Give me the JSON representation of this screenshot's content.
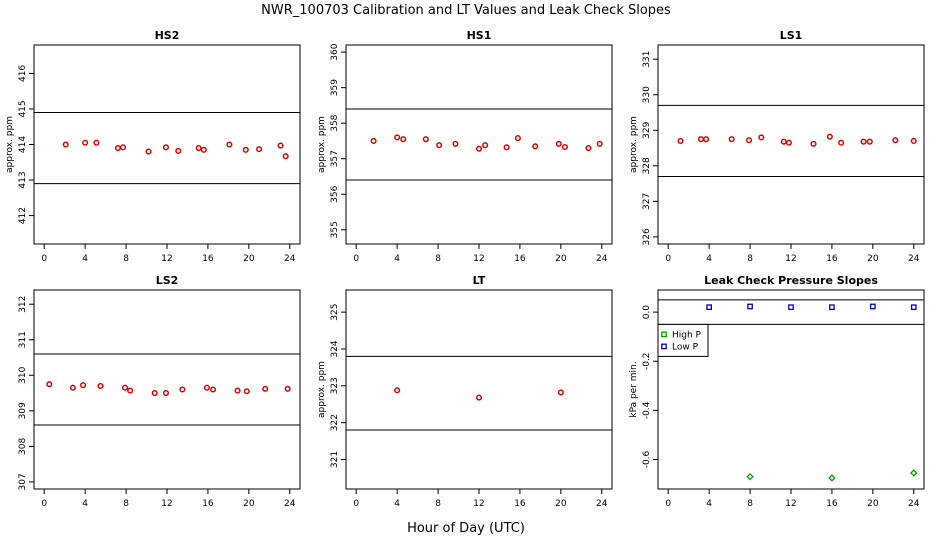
{
  "figure": {
    "title": "NWR_100703  Calibration and LT Values and Leak Check Slopes",
    "xlabel": "Hour of Day (UTC)"
  },
  "colors": {
    "marker": "#e00000",
    "high_p": "#00a000",
    "low_p": "#0000cc",
    "axis": "#000000"
  },
  "chart_data": [
    {
      "type": "scatter",
      "title": "HS2",
      "ylabel": "approx. ppm",
      "xlim": [
        -1,
        25
      ],
      "ylim": [
        411.2,
        416.8
      ],
      "xticks": [
        0,
        4,
        8,
        12,
        16,
        20,
        24
      ],
      "yticks": [
        412,
        413,
        414,
        415,
        416
      ],
      "hlines": [
        414.9,
        412.9
      ],
      "series": [
        {
          "marker": "circle",
          "color_key": "marker",
          "x": [
            2.1,
            4.0,
            5.1,
            7.2,
            7.7,
            10.2,
            11.9,
            13.1,
            15.1,
            15.6,
            18.1,
            19.7,
            21.0,
            23.1,
            23.6
          ],
          "y": [
            414.0,
            414.05,
            414.05,
            413.9,
            413.92,
            413.8,
            413.92,
            413.82,
            413.9,
            413.85,
            414.0,
            413.85,
            413.87,
            413.97,
            413.67
          ]
        }
      ]
    },
    {
      "type": "scatter",
      "title": "HS1",
      "ylabel": "approx. ppm",
      "xlim": [
        -1,
        25
      ],
      "ylim": [
        354.6,
        360.2
      ],
      "xticks": [
        0,
        4,
        8,
        12,
        16,
        20,
        24
      ],
      "yticks": [
        355,
        356,
        357,
        358,
        359,
        360
      ],
      "hlines": [
        358.4,
        356.4
      ],
      "series": [
        {
          "marker": "circle",
          "color_key": "marker",
          "x": [
            1.7,
            4.0,
            4.6,
            6.8,
            8.1,
            9.7,
            12.0,
            12.6,
            14.7,
            15.8,
            17.5,
            19.8,
            20.4,
            22.7,
            23.8
          ],
          "y": [
            357.5,
            357.6,
            357.55,
            357.55,
            357.38,
            357.42,
            357.28,
            357.38,
            357.32,
            357.58,
            357.35,
            357.42,
            357.33,
            357.3,
            357.42
          ]
        }
      ]
    },
    {
      "type": "scatter",
      "title": "LS1",
      "ylabel": "approx. ppm",
      "xlim": [
        -1,
        25
      ],
      "ylim": [
        325.8,
        331.4
      ],
      "xticks": [
        0,
        4,
        8,
        12,
        16,
        20,
        24
      ],
      "yticks": [
        326,
        327,
        328,
        329,
        330,
        331
      ],
      "hlines": [
        329.7,
        327.7
      ],
      "series": [
        {
          "marker": "circle",
          "color_key": "marker",
          "x": [
            1.2,
            3.2,
            3.7,
            6.2,
            7.9,
            9.1,
            11.3,
            11.8,
            14.2,
            15.8,
            16.9,
            19.1,
            19.7,
            22.2,
            24.0
          ],
          "y": [
            328.7,
            328.75,
            328.75,
            328.75,
            328.72,
            328.8,
            328.68,
            328.65,
            328.62,
            328.82,
            328.65,
            328.68,
            328.68,
            328.72,
            328.7
          ]
        }
      ]
    },
    {
      "type": "scatter",
      "title": "LS2",
      "ylabel": "",
      "xlim": [
        -1,
        25
      ],
      "ylim": [
        306.8,
        312.4
      ],
      "xticks": [
        0,
        4,
        8,
        12,
        16,
        20,
        24
      ],
      "yticks": [
        307,
        308,
        309,
        310,
        311,
        312
      ],
      "hlines": [
        310.6,
        308.6
      ],
      "series": [
        {
          "marker": "circle",
          "color_key": "marker",
          "x": [
            0.5,
            2.8,
            3.8,
            5.5,
            7.9,
            8.4,
            10.8,
            11.9,
            13.5,
            15.9,
            16.5,
            18.9,
            19.8,
            21.6,
            23.8
          ],
          "y": [
            309.75,
            309.65,
            309.72,
            309.7,
            309.65,
            309.57,
            309.5,
            309.5,
            309.6,
            309.65,
            309.6,
            309.57,
            309.55,
            309.62,
            309.62
          ]
        }
      ]
    },
    {
      "type": "scatter",
      "title": "LT",
      "ylabel": "approx. ppm",
      "xlim": [
        -1,
        25
      ],
      "ylim": [
        320.2,
        325.6
      ],
      "xticks": [
        0,
        4,
        8,
        12,
        16,
        20,
        24
      ],
      "yticks": [
        321,
        322,
        323,
        324,
        325
      ],
      "hlines": [
        323.8,
        321.8
      ],
      "series": [
        {
          "marker": "circle",
          "color_key": "marker",
          "x": [
            4.0,
            12.0,
            20.0
          ],
          "y": [
            322.88,
            322.68,
            322.82
          ]
        }
      ]
    },
    {
      "type": "scatter",
      "title": "Leak Check Pressure Slopes",
      "ylabel": "kPa per min.",
      "xlim": [
        -1,
        25
      ],
      "ylim": [
        -0.72,
        0.09
      ],
      "xticks": [
        0,
        4,
        8,
        12,
        16,
        20,
        24
      ],
      "yticks": [
        0.0,
        -0.2,
        -0.4,
        -0.6
      ],
      "ytick_labels": [
        "0.0",
        "-0.2",
        "-0.4",
        "-0.6"
      ],
      "hlines": [
        0.05,
        -0.05
      ],
      "legend": {
        "position": "top-left",
        "entries": [
          "High P",
          "Low P"
        ]
      },
      "series": [
        {
          "name": "High P",
          "marker": "diamond",
          "color_key": "high_p",
          "x": [
            8,
            16,
            24
          ],
          "y": [
            -0.67,
            -0.675,
            -0.655
          ]
        },
        {
          "name": "Low P",
          "marker": "square",
          "color_key": "low_p",
          "x": [
            4,
            8,
            12,
            16,
            20,
            24
          ],
          "y": [
            0.02,
            0.023,
            0.02,
            0.02,
            0.023,
            0.02
          ]
        }
      ]
    }
  ]
}
